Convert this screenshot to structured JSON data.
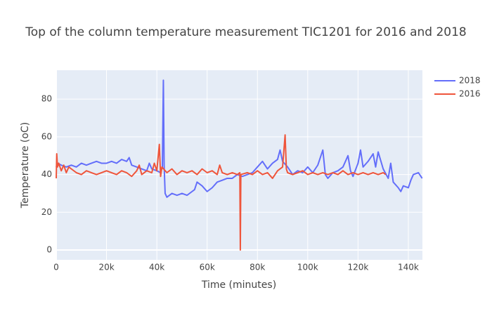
{
  "chart_data": {
    "type": "line",
    "title": "Top of the column temperature measurement TIC1201 for 2016 and 2018",
    "x_label": "Time (minutes)",
    "y_label": "Temperature (oC)",
    "xlim": [
      0,
      145600
    ],
    "ylim": [
      -5.2,
      95.3
    ],
    "xticks": [
      0,
      {
        "value": 20000,
        "label": "20k"
      },
      {
        "value": 40000,
        "label": "40k"
      },
      {
        "value": 60000,
        "label": "60k"
      },
      {
        "value": 80000,
        "label": "80k"
      },
      {
        "value": 100000,
        "label": "100k"
      },
      {
        "value": 120000,
        "label": "120k"
      },
      {
        "value": 140000,
        "label": "140k"
      }
    ],
    "yticks": [
      0,
      20,
      40,
      60,
      80
    ],
    "grid": true,
    "legend": "top-right",
    "series": [
      {
        "name": "2018",
        "color": "#636efa",
        "x": [
          0,
          500,
          2000,
          4000,
          6000,
          8000,
          10000,
          12000,
          14000,
          16000,
          18000,
          20000,
          22000,
          24000,
          26000,
          28000,
          29000,
          30000,
          32000,
          34000,
          36000,
          37000,
          38000,
          40000,
          41500,
          42200,
          42600,
          42900,
          43300,
          44000,
          46000,
          48000,
          50000,
          52000,
          54000,
          55000,
          56000,
          58000,
          60000,
          62000,
          64000,
          66000,
          68000,
          70000,
          72000,
          74000,
          76000,
          78000,
          80000,
          82000,
          84000,
          86000,
          88000,
          89000,
          90000,
          92000,
          94000,
          96000,
          98000,
          100000,
          102000,
          104000,
          106000,
          107000,
          108000,
          110000,
          112000,
          114000,
          116000,
          117000,
          118000,
          120000,
          121000,
          122000,
          124000,
          126000,
          127000,
          128000,
          130000,
          132000,
          133000,
          134000,
          136000,
          137000,
          138000,
          140000,
          141000,
          142000,
          144000,
          145500
        ],
        "values": [
          44,
          46,
          45,
          44,
          45,
          44,
          46,
          45,
          46,
          47,
          46,
          46,
          47,
          46,
          48,
          47,
          49,
          45,
          44,
          43,
          42,
          46,
          43,
          42,
          41,
          44,
          90,
          45,
          30,
          28,
          30,
          29,
          30,
          29,
          31,
          32,
          36,
          34,
          31,
          33,
          36,
          37,
          38,
          38,
          40,
          39,
          40,
          41,
          44,
          47,
          43,
          46,
          48,
          53,
          47,
          44,
          40,
          42,
          41,
          44,
          41,
          45,
          53,
          40,
          38,
          41,
          42,
          44,
          50,
          42,
          39,
          46,
          53,
          44,
          47,
          51,
          44,
          52,
          43,
          38,
          46,
          36,
          33,
          31,
          34,
          33,
          37,
          40,
          41,
          38
        ]
      },
      {
        "name": "2016",
        "color": "#ef553b",
        "x": [
          0,
          200,
          500,
          1000,
          2000,
          3000,
          4000,
          5000,
          6000,
          8000,
          10000,
          12000,
          14000,
          16000,
          18000,
          20000,
          22000,
          24000,
          26000,
          28000,
          30000,
          32000,
          33000,
          34000,
          36000,
          38000,
          39000,
          40000,
          41000,
          41500,
          42000,
          44000,
          46000,
          48000,
          50000,
          52000,
          54000,
          56000,
          58000,
          60000,
          62000,
          64000,
          65000,
          66000,
          68000,
          70000,
          72000,
          73000,
          73200,
          73400,
          76000,
          78000,
          80000,
          82000,
          84000,
          86000,
          88000,
          90000,
          91000,
          91500,
          92000,
          94000,
          96000,
          98000,
          100000,
          102000,
          104000,
          106000,
          108000,
          110000,
          112000,
          114000,
          116000,
          118000,
          120000,
          122000,
          124000,
          126000,
          128000,
          130000,
          131000
        ],
        "values": [
          38,
          51,
          44,
          46,
          42,
          45,
          41,
          44,
          43,
          41,
          40,
          42,
          41,
          40,
          41,
          42,
          41,
          40,
          42,
          41,
          39,
          42,
          45,
          40,
          42,
          41,
          46,
          42,
          56,
          39,
          44,
          41,
          43,
          40,
          42,
          41,
          42,
          40,
          43,
          41,
          42,
          40,
          45,
          41,
          40,
          41,
          40,
          41,
          0,
          40,
          41,
          40,
          42,
          40,
          41,
          38,
          42,
          44,
          61,
          43,
          41,
          40,
          41,
          42,
          40,
          41,
          40,
          41,
          40,
          41,
          40,
          42,
          40,
          41,
          40,
          41,
          40,
          41,
          40,
          41,
          40
        ]
      }
    ]
  }
}
